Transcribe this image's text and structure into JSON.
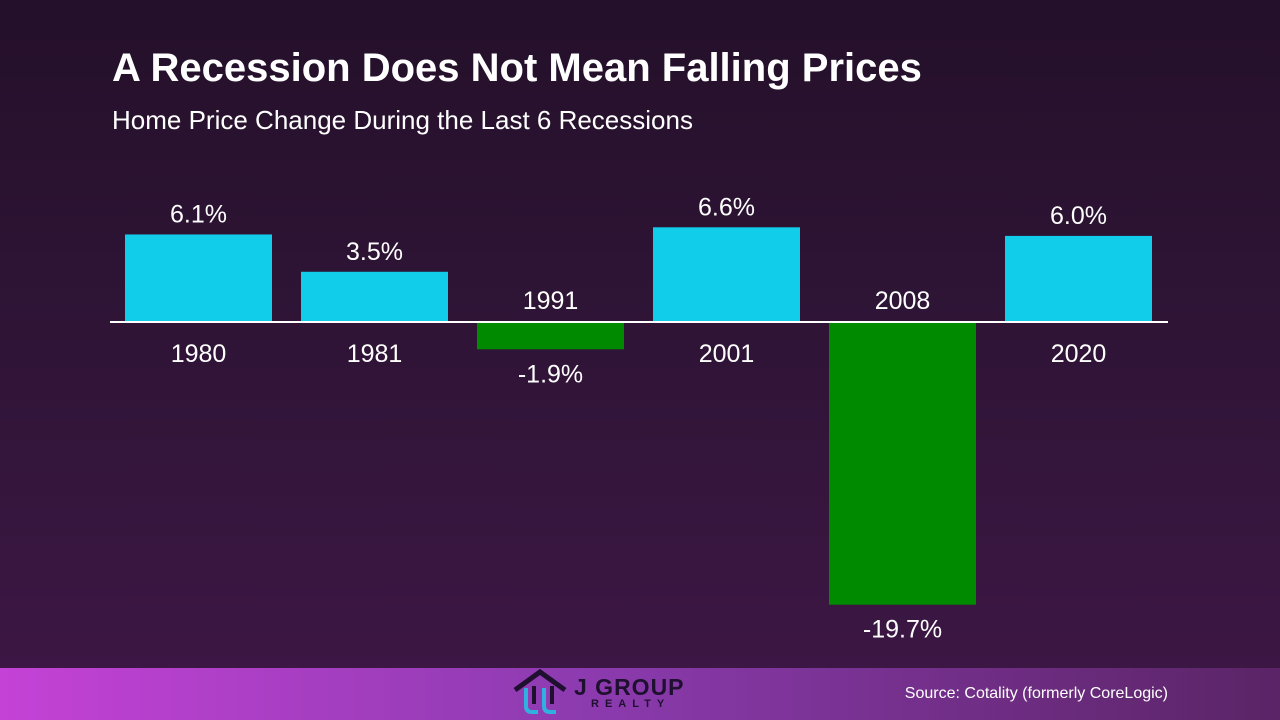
{
  "header": {
    "title": "A Recession Does Not Mean Falling Prices",
    "subtitle": "Home Price Change During the Last 6 Recessions"
  },
  "chart_data": {
    "type": "bar",
    "title": "A Recession Does Not Mean Falling Prices",
    "subtitle": "Home Price Change During the Last 6 Recessions",
    "categories": [
      "1980",
      "1981",
      "1991",
      "2001",
      "2008",
      "2020"
    ],
    "values": [
      6.1,
      3.5,
      -1.9,
      6.6,
      -19.7,
      6.0
    ],
    "value_labels": [
      "6.1%",
      "3.5%",
      "-1.9%",
      "6.6%",
      "-19.7%",
      "6.0%"
    ],
    "xlabel": "",
    "ylabel": "",
    "ylim": [
      -20,
      7
    ],
    "grid": false,
    "colors": {
      "positive": "#12cdea",
      "negative": "#008a00",
      "baseline": "#ffffff"
    }
  },
  "footer": {
    "logo_name": "J GROUP",
    "logo_sub": "REALTY",
    "source": "Source: Cotality (formerly CoreLogic)",
    "colors": {
      "logo_house": "#1f1030",
      "logo_accent": "#2fb0e0"
    }
  }
}
